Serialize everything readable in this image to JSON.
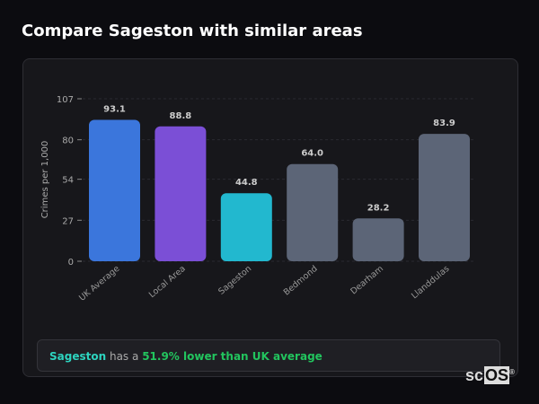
{
  "title": "Compare Sageston with similar areas",
  "chart_data": {
    "type": "bar",
    "title": "",
    "ylabel": "Crimes per 1,000",
    "xlabel": "",
    "ylim": [
      0,
      107
    ],
    "yticks": [
      0,
      27,
      54,
      80,
      107
    ],
    "grid": true,
    "categories": [
      "UK Average",
      "Local Area",
      "Sageston",
      "Bedmond",
      "Dearham",
      "Llanddulas"
    ],
    "values": [
      93.1,
      88.8,
      44.8,
      64.0,
      28.2,
      83.9
    ],
    "colors": [
      "#3b76dc",
      "#7b4fd6",
      "#22b8cf",
      "#5c6577",
      "#5c6577",
      "#5c6577"
    ]
  },
  "insight": {
    "area": "Sageston",
    "middle": "has a",
    "highlight": "51.9% lower than UK average"
  },
  "logo": {
    "prefix": "sc",
    "suffix": "OS",
    "mark": "®"
  }
}
